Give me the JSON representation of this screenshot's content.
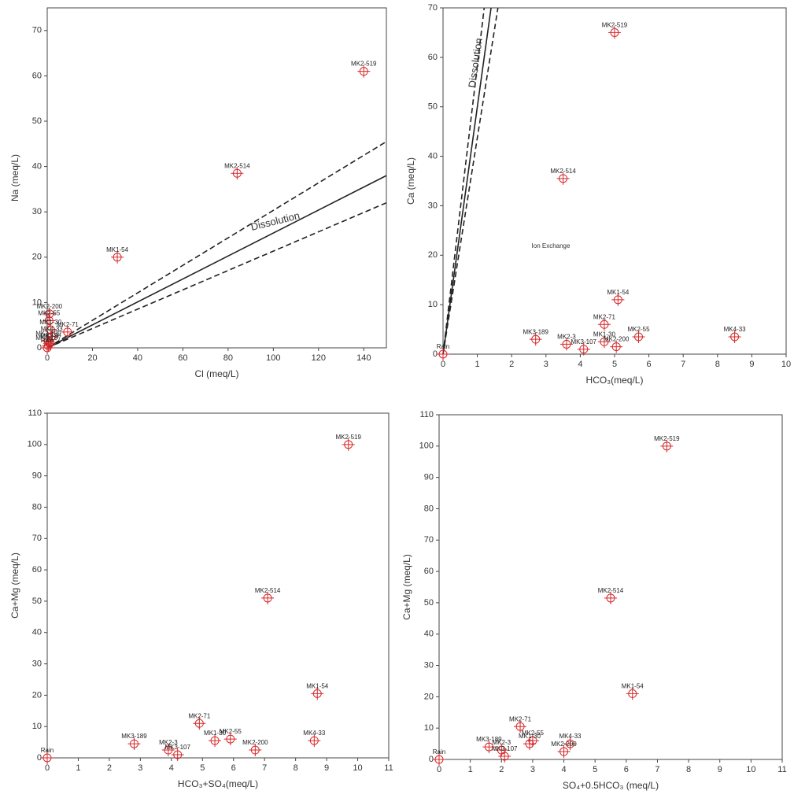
{
  "chart_data": [
    {
      "type": "scatter",
      "x_label": "Cl (meq/L)",
      "y_label": "Na (meq/L)",
      "xlim": [
        0,
        150
      ],
      "xticks": [
        0,
        20,
        40,
        60,
        80,
        100,
        120,
        140
      ],
      "ylim": [
        0,
        75
      ],
      "yticks": [
        0,
        10,
        20,
        30,
        40,
        50,
        60,
        70
      ],
      "grid": false,
      "marker_color": "#d62728",
      "point_labels": [
        "MK2-519",
        "MK2-514",
        "MK1-54",
        "MK2-200",
        "MK2-55",
        "MK1-30",
        "MK2-71",
        "MK4-33",
        "MK3-189",
        "MK2-3",
        "MK3-107",
        "Rain"
      ],
      "x": [
        140,
        84,
        31,
        1,
        0.8,
        1.5,
        9,
        2,
        0.5,
        1,
        0.5,
        0
      ],
      "values": [
        61,
        38.5,
        20,
        7.5,
        6,
        4,
        3.5,
        2.5,
        1.5,
        1,
        0.5,
        0
      ],
      "reference_lines": [
        {
          "x": [
            0,
            150
          ],
          "y": [
            0,
            38
          ],
          "dashed": false
        },
        {
          "x": [
            0,
            150
          ],
          "y": [
            0,
            45.5
          ],
          "dashed": true
        },
        {
          "x": [
            0,
            150
          ],
          "y": [
            0,
            32
          ],
          "dashed": true
        }
      ],
      "annotations": [
        "Dissolution"
      ]
    },
    {
      "type": "scatter",
      "x_label": "HCO₃(meq/L)",
      "y_label": "Ca (meq/L)",
      "xlim": [
        0,
        10
      ],
      "xticks": [
        0,
        1,
        2,
        3,
        4,
        5,
        6,
        7,
        8,
        9,
        10
      ],
      "ylim": [
        0,
        70
      ],
      "yticks": [
        0,
        10,
        20,
        30,
        40,
        50,
        60,
        70
      ],
      "grid": false,
      "marker_color": "#d62728",
      "point_labels": [
        "MK2-519",
        "MK2-514",
        "MK1-54",
        "MK2-71",
        "MK3-189",
        "MK2-3",
        "MK3-107",
        "MK1-30",
        "MK2-200",
        "MK2-55",
        "MK4-33",
        "Rain"
      ],
      "x": [
        5,
        3.5,
        5.1,
        4.7,
        2.7,
        3.6,
        4.1,
        4.7,
        5.05,
        5.7,
        8.5,
        0
      ],
      "values": [
        65,
        35.5,
        11,
        6,
        3,
        2,
        1,
        2.5,
        1.5,
        3.5,
        3.5,
        0
      ],
      "reference_lines": [
        {
          "x": [
            0,
            1.4
          ],
          "y": [
            0,
            70
          ],
          "dashed": false
        },
        {
          "x": [
            0,
            1.6
          ],
          "y": [
            0,
            70
          ],
          "dashed": true
        },
        {
          "x": [
            0,
            1.2
          ],
          "y": [
            0,
            70
          ],
          "dashed": true
        }
      ],
      "annotations": [
        "Dissolution",
        "Ion Exchange"
      ]
    },
    {
      "type": "scatter",
      "x_label": "HCO₃+SO₄(meq/L)",
      "y_label": "Ca+Mg (meq/L)",
      "xlim": [
        0,
        11
      ],
      "xticks": [
        0,
        1,
        2,
        3,
        4,
        5,
        6,
        7,
        8,
        9,
        10,
        11
      ],
      "ylim": [
        0,
        110
      ],
      "yticks": [
        0,
        10,
        20,
        30,
        40,
        50,
        60,
        70,
        80,
        90,
        100,
        110
      ],
      "grid": false,
      "marker_color": "#d62728",
      "point_labels": [
        "MK2-519",
        "MK2-514",
        "MK1-54",
        "MK4-33",
        "MK2-71",
        "MK3-189",
        "MK2-3",
        "MK3-107",
        "MK1-30",
        "MK2-55",
        "MK2-200",
        "Rain"
      ],
      "x": [
        9.7,
        7.1,
        8.7,
        8.6,
        4.9,
        2.8,
        3.9,
        4.2,
        5.4,
        5.9,
        6.7,
        0
      ],
      "values": [
        100,
        51,
        20.5,
        5.5,
        11,
        4.5,
        2.5,
        1,
        5.5,
        6,
        2.5,
        0
      ],
      "annotations": []
    },
    {
      "type": "scatter",
      "x_label": "SO₄+0.5HCO₃ (meq/L)",
      "y_label": "Ca+Mg (meq/L)",
      "xlim": [
        0,
        11
      ],
      "xticks": [
        0,
        1,
        2,
        3,
        4,
        5,
        6,
        7,
        8,
        9,
        10,
        11
      ],
      "ylim": [
        0,
        110
      ],
      "yticks": [
        0,
        10,
        20,
        30,
        40,
        50,
        60,
        70,
        80,
        90,
        100,
        110
      ],
      "grid": false,
      "marker_color": "#d62728",
      "point_labels": [
        "MK2-519",
        "MK2-514",
        "MK1-54",
        "MK2-71",
        "MK3-189",
        "MK2-3",
        "MK3-107",
        "MK2-55",
        "MK4-33",
        "MK2-200",
        "MK1-30",
        "Rain"
      ],
      "x": [
        7.3,
        5.5,
        6.2,
        2.6,
        1.6,
        2.0,
        2.1,
        3.0,
        4.2,
        4.0,
        2.9,
        0
      ],
      "values": [
        100,
        51.5,
        21,
        10.5,
        4,
        3,
        1,
        6,
        5,
        2.5,
        5,
        0
      ],
      "annotations": []
    }
  ]
}
